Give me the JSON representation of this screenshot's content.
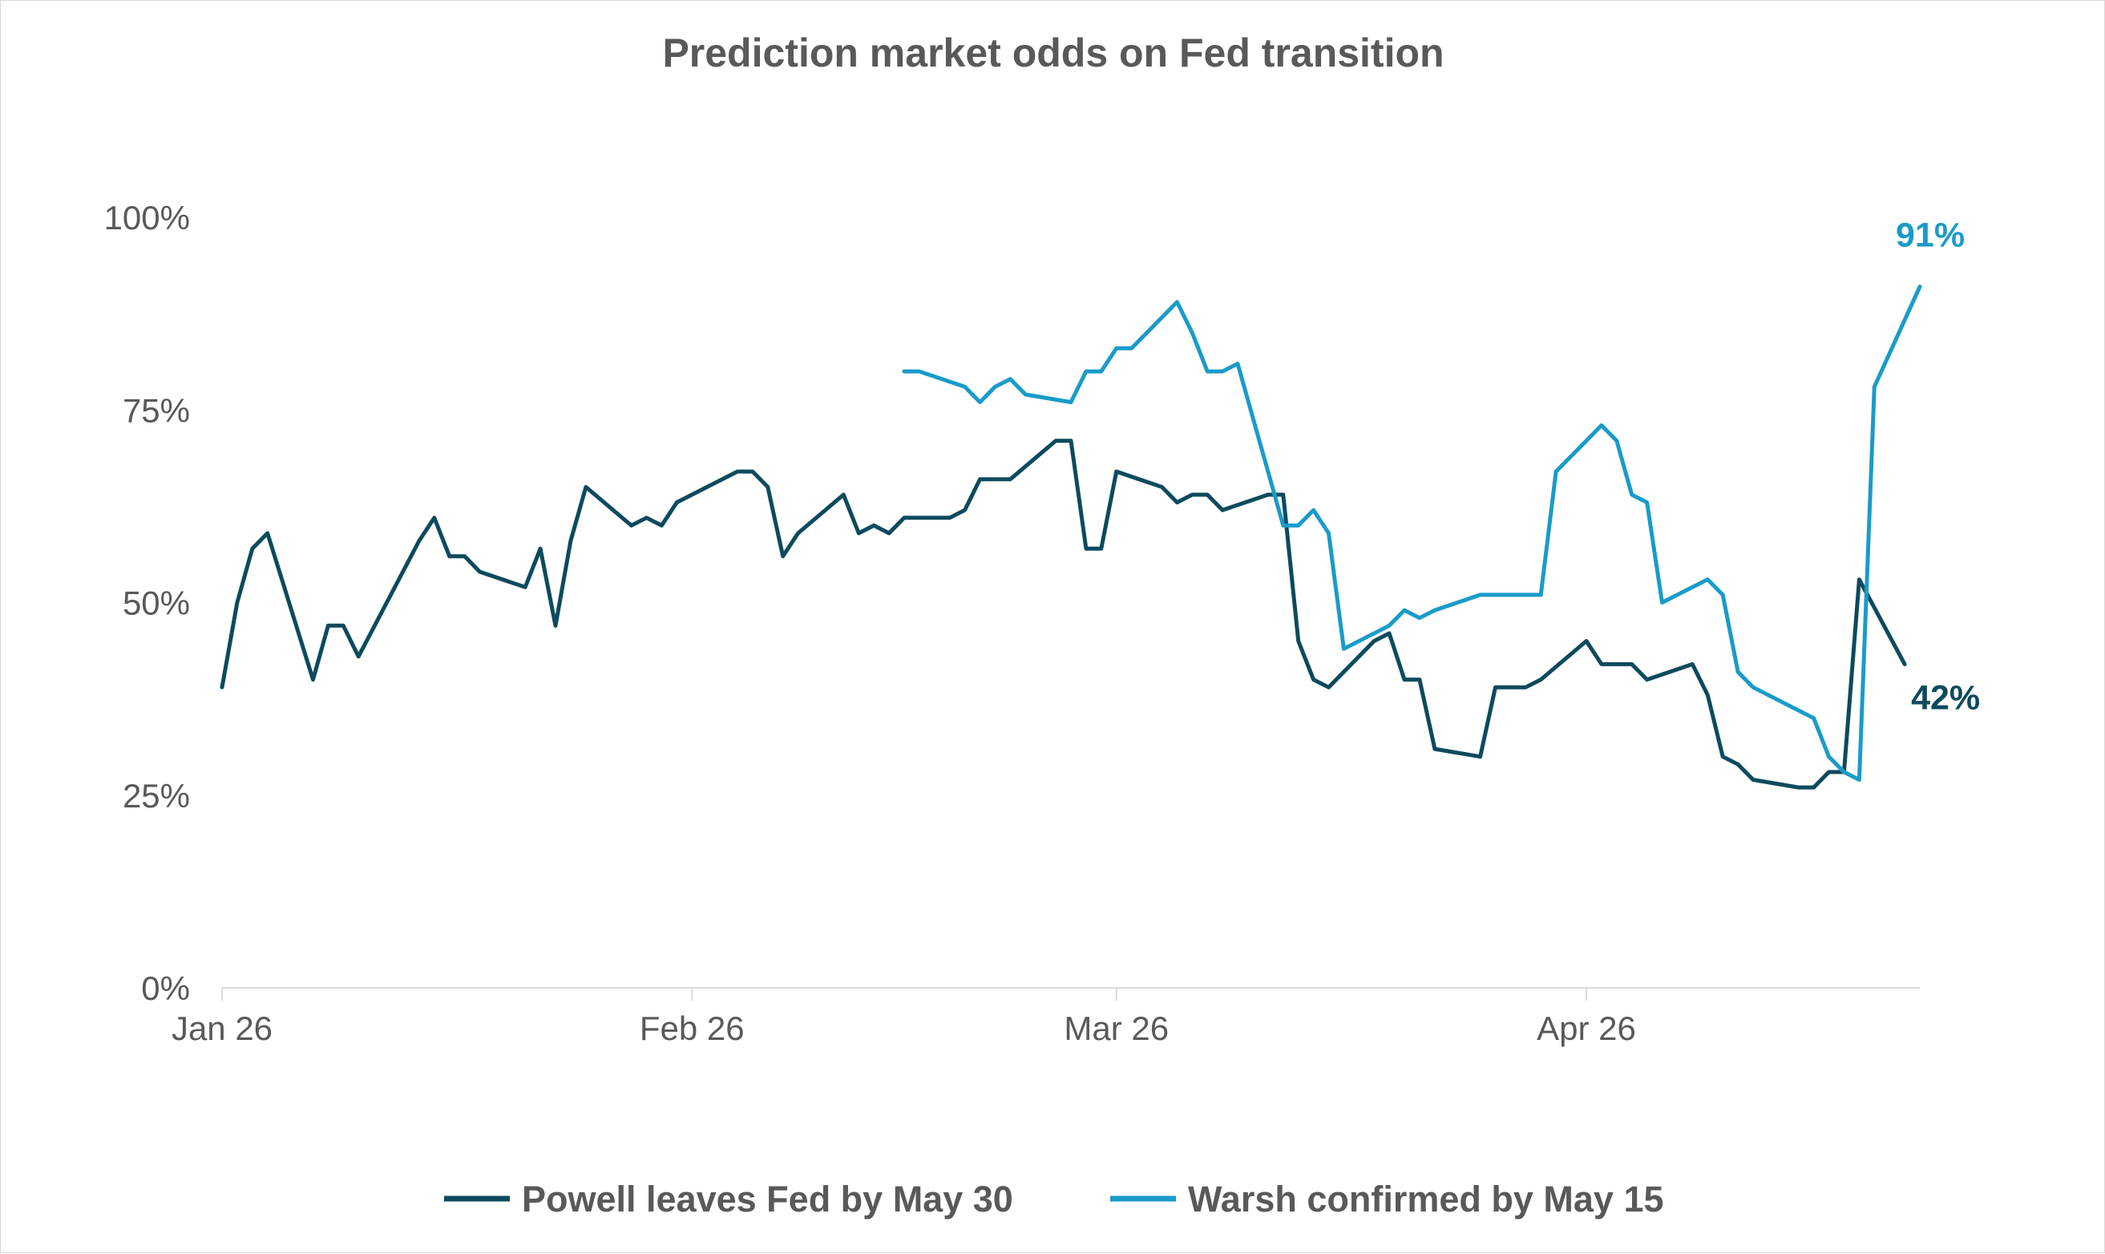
{
  "chart_data": {
    "type": "line",
    "title": "Prediction market odds on Fed transition",
    "xlabel": "",
    "ylabel": "",
    "ylim": [
      0,
      100
    ],
    "y_ticks": [
      "0%",
      "25%",
      "50%",
      "75%",
      "100%"
    ],
    "y_tick_values": [
      0,
      25,
      50,
      75,
      100
    ],
    "x_ticks": [
      {
        "label": "Jan 26",
        "date": "2026-01-01"
      },
      {
        "label": "Feb 26",
        "date": "2026-02-01"
      },
      {
        "label": "Mar 26",
        "date": "2026-03-01"
      },
      {
        "label": "Apr 26",
        "date": "2026-04-01"
      }
    ],
    "xlim": [
      "2026-01-01",
      "2026-04-23"
    ],
    "grid": false,
    "legend": "bottom",
    "series": [
      {
        "name": "Powell leaves Fed by May 30",
        "color": "#0d4a5e",
        "end_label": "42%",
        "points": [
          [
            "2026-01-01",
            39
          ],
          [
            "2026-01-02",
            50
          ],
          [
            "2026-01-03",
            57
          ],
          [
            "2026-01-04",
            59
          ],
          [
            "2026-01-07",
            40
          ],
          [
            "2026-01-08",
            47
          ],
          [
            "2026-01-09",
            47
          ],
          [
            "2026-01-10",
            43
          ],
          [
            "2026-01-14",
            58
          ],
          [
            "2026-01-15",
            61
          ],
          [
            "2026-01-16",
            56
          ],
          [
            "2026-01-17",
            56
          ],
          [
            "2026-01-18",
            54
          ],
          [
            "2026-01-21",
            52
          ],
          [
            "2026-01-22",
            57
          ],
          [
            "2026-01-23",
            47
          ],
          [
            "2026-01-24",
            58
          ],
          [
            "2026-01-25",
            65
          ],
          [
            "2026-01-28",
            60
          ],
          [
            "2026-01-29",
            61
          ],
          [
            "2026-01-30",
            60
          ],
          [
            "2026-01-31",
            63
          ],
          [
            "2026-02-04",
            67
          ],
          [
            "2026-02-05",
            67
          ],
          [
            "2026-02-06",
            65
          ],
          [
            "2026-02-07",
            56
          ],
          [
            "2026-02-08",
            59
          ],
          [
            "2026-02-11",
            64
          ],
          [
            "2026-02-12",
            59
          ],
          [
            "2026-02-13",
            60
          ],
          [
            "2026-02-14",
            59
          ],
          [
            "2026-02-15",
            61
          ],
          [
            "2026-02-18",
            61
          ],
          [
            "2026-02-19",
            62
          ],
          [
            "2026-02-20",
            66
          ],
          [
            "2026-02-22",
            66
          ],
          [
            "2026-02-25",
            71
          ],
          [
            "2026-02-26",
            71
          ],
          [
            "2026-02-27",
            57
          ],
          [
            "2026-02-28",
            57
          ],
          [
            "2026-03-01",
            67
          ],
          [
            "2026-03-04",
            65
          ],
          [
            "2026-03-05",
            63
          ],
          [
            "2026-03-06",
            64
          ],
          [
            "2026-03-07",
            64
          ],
          [
            "2026-03-08",
            62
          ],
          [
            "2026-03-11",
            64
          ],
          [
            "2026-03-12",
            64
          ],
          [
            "2026-03-13",
            45
          ],
          [
            "2026-03-14",
            40
          ],
          [
            "2026-03-15",
            39
          ],
          [
            "2026-03-18",
            45
          ],
          [
            "2026-03-19",
            46
          ],
          [
            "2026-03-20",
            40
          ],
          [
            "2026-03-21",
            40
          ],
          [
            "2026-03-22",
            31
          ],
          [
            "2026-03-25",
            30
          ],
          [
            "2026-03-26",
            39
          ],
          [
            "2026-03-28",
            39
          ],
          [
            "2026-03-29",
            40
          ],
          [
            "2026-04-01",
            45
          ],
          [
            "2026-04-02",
            42
          ],
          [
            "2026-04-04",
            42
          ],
          [
            "2026-04-05",
            40
          ],
          [
            "2026-04-08",
            42
          ],
          [
            "2026-04-09",
            38
          ],
          [
            "2026-04-10",
            30
          ],
          [
            "2026-04-11",
            29
          ],
          [
            "2026-04-12",
            27
          ],
          [
            "2026-04-15",
            26
          ],
          [
            "2026-04-16",
            26
          ],
          [
            "2026-04-17",
            28
          ],
          [
            "2026-04-18",
            28
          ],
          [
            "2026-04-19",
            53
          ],
          [
            "2026-04-22",
            42
          ]
        ]
      },
      {
        "name": "Warsh confirmed by May 15",
        "color": "#1a9bc9",
        "end_label": "91%",
        "points": [
          [
            "2026-02-15",
            80
          ],
          [
            "2026-02-16",
            80
          ],
          [
            "2026-02-19",
            78
          ],
          [
            "2026-02-20",
            76
          ],
          [
            "2026-02-21",
            78
          ],
          [
            "2026-02-22",
            79
          ],
          [
            "2026-02-23",
            77
          ],
          [
            "2026-02-26",
            76
          ],
          [
            "2026-02-27",
            80
          ],
          [
            "2026-02-28",
            80
          ],
          [
            "2026-03-01",
            83
          ],
          [
            "2026-03-02",
            83
          ],
          [
            "2026-03-05",
            89
          ],
          [
            "2026-03-06",
            85
          ],
          [
            "2026-03-07",
            80
          ],
          [
            "2026-03-08",
            80
          ],
          [
            "2026-03-09",
            81
          ],
          [
            "2026-03-12",
            60
          ],
          [
            "2026-03-13",
            60
          ],
          [
            "2026-03-14",
            62
          ],
          [
            "2026-03-15",
            59
          ],
          [
            "2026-03-16",
            44
          ],
          [
            "2026-03-19",
            47
          ],
          [
            "2026-03-20",
            49
          ],
          [
            "2026-03-21",
            48
          ],
          [
            "2026-03-22",
            49
          ],
          [
            "2026-03-25",
            51
          ],
          [
            "2026-03-26",
            51
          ],
          [
            "2026-03-29",
            51
          ],
          [
            "2026-03-30",
            67
          ],
          [
            "2026-04-02",
            73
          ],
          [
            "2026-04-03",
            71
          ],
          [
            "2026-04-04",
            64
          ],
          [
            "2026-04-05",
            63
          ],
          [
            "2026-04-06",
            50
          ],
          [
            "2026-04-09",
            53
          ],
          [
            "2026-04-10",
            51
          ],
          [
            "2026-04-11",
            41
          ],
          [
            "2026-04-12",
            39
          ],
          [
            "2026-04-16",
            35
          ],
          [
            "2026-04-17",
            30
          ],
          [
            "2026-04-18",
            28
          ],
          [
            "2026-04-19",
            27
          ],
          [
            "2026-04-20",
            78
          ],
          [
            "2026-04-23",
            91
          ]
        ]
      }
    ]
  }
}
